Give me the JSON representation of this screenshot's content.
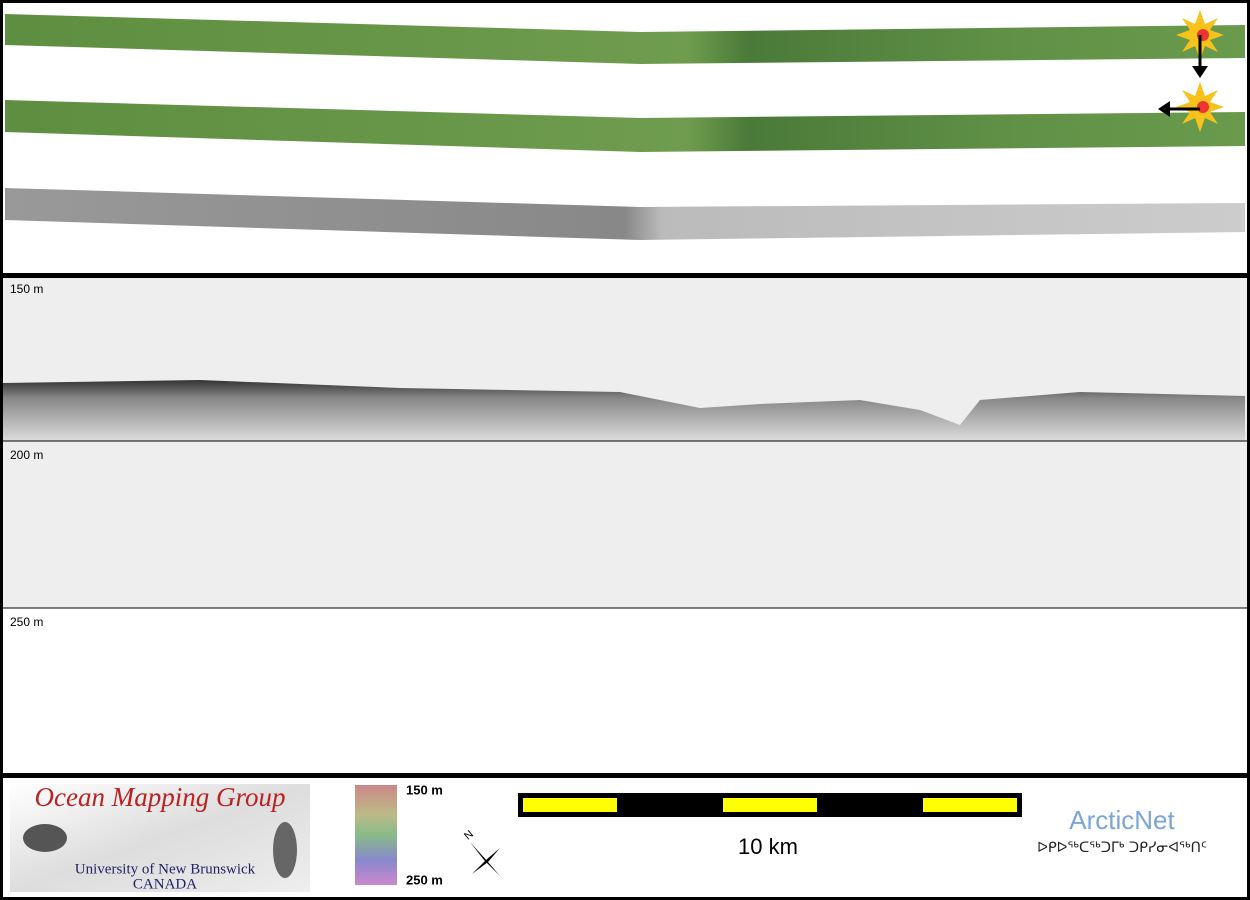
{
  "profile": {
    "depth_labels": [
      "150 m",
      "200 m",
      "250 m"
    ]
  },
  "footer": {
    "logo_title": "Ocean Mapping Group",
    "logo_subtitle": "University of New Brunswick",
    "logo_country": "CANADA",
    "colorbar_top": "150 m",
    "colorbar_bottom": "250 m",
    "north": "N",
    "scale_label": "10 km",
    "partner": "ArcticNet",
    "partner_syllabics": "ᐅᑭᐅᖅᑕᖅᑐᒥᒃ ᑐᑭᓯᓂᐊᖅᑎᑦ"
  }
}
